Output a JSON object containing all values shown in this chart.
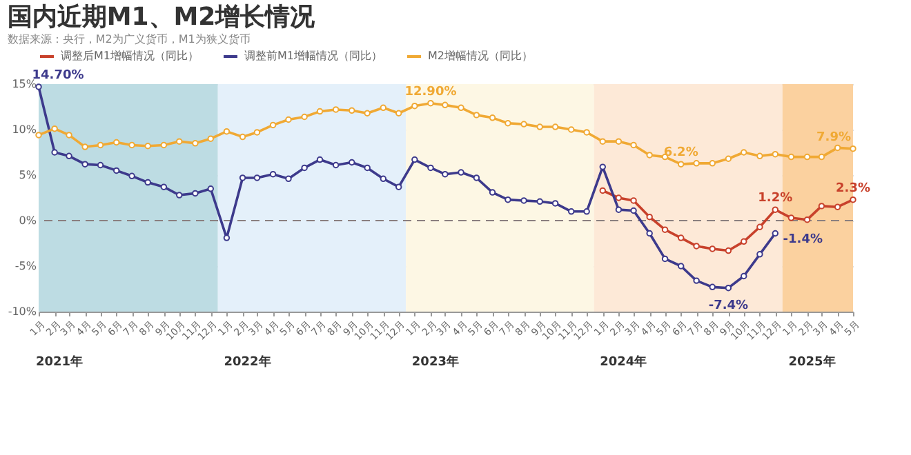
{
  "chart_data": {
    "type": "line",
    "title": "国内近期M1、M2增长情况",
    "subtitle": "数据来源：央行，M2为广义货币，M1为狭义货币",
    "x": [
      "2021-01",
      "2021-02",
      "2021-03",
      "2021-04",
      "2021-05",
      "2021-06",
      "2021-07",
      "2021-08",
      "2021-09",
      "2021-10",
      "2021-11",
      "2021-12",
      "2022-01",
      "2022-02",
      "2022-03",
      "2022-04",
      "2022-05",
      "2022-06",
      "2022-07",
      "2022-08",
      "2022-09",
      "2022-10",
      "2022-11",
      "2022-12",
      "2023-01",
      "2023-02",
      "2023-03",
      "2023-04",
      "2023-05",
      "2023-06",
      "2023-07",
      "2023-08",
      "2023-09",
      "2023-10",
      "2023-11",
      "2023-12",
      "2024-01",
      "2024-02",
      "2024-03",
      "2024-04",
      "2024-05",
      "2024-06",
      "2024-07",
      "2024-08",
      "2024-09",
      "2024-10",
      "2024-11",
      "2024-12",
      "2025-01",
      "2025-02",
      "2025-03",
      "2025-04",
      "2025-05"
    ],
    "series": [
      {
        "name": "调整后M1增幅情况（同比）",
        "color": "#c8412b",
        "values": [
          null,
          null,
          null,
          null,
          null,
          null,
          null,
          null,
          null,
          null,
          null,
          null,
          null,
          null,
          null,
          null,
          null,
          null,
          null,
          null,
          null,
          null,
          null,
          null,
          null,
          null,
          null,
          null,
          null,
          null,
          null,
          null,
          null,
          null,
          null,
          null,
          3.3,
          2.5,
          2.2,
          0.4,
          -1.0,
          -1.9,
          -2.8,
          -3.1,
          -3.3,
          -2.3,
          -0.7,
          1.2,
          0.3,
          0.1,
          1.6,
          1.5,
          2.3
        ],
        "value_labels": [
          null,
          null,
          null,
          null,
          null,
          null,
          null,
          null,
          null,
          null,
          null,
          null,
          null,
          null,
          null,
          null,
          null,
          null,
          null,
          null,
          null,
          null,
          null,
          null,
          null,
          null,
          null,
          null,
          null,
          null,
          null,
          null,
          null,
          null,
          null,
          null,
          null,
          null,
          null,
          null,
          null,
          null,
          null,
          null,
          null,
          null,
          null,
          "1.2%",
          null,
          null,
          null,
          null,
          "2.3%"
        ]
      },
      {
        "name": "调整前M1增幅情况（同比）",
        "color": "#3d3a8c",
        "values": [
          14.7,
          7.5,
          7.1,
          6.2,
          6.1,
          5.5,
          4.9,
          4.2,
          3.7,
          2.8,
          3.0,
          3.5,
          -1.9,
          4.7,
          4.7,
          5.1,
          4.6,
          5.8,
          6.7,
          6.1,
          6.4,
          5.8,
          4.6,
          3.7,
          6.7,
          5.8,
          5.1,
          5.3,
          4.7,
          3.1,
          2.3,
          2.2,
          2.1,
          1.9,
          1.0,
          1.0,
          5.9,
          1.2,
          1.1,
          -1.4,
          -4.2,
          -5.0,
          -6.6,
          -7.3,
          -7.4,
          -6.1,
          -3.7,
          -1.4,
          null,
          null,
          null,
          null,
          null
        ],
        "value_labels": [
          "14.70%",
          null,
          null,
          null,
          null,
          null,
          null,
          null,
          null,
          null,
          null,
          null,
          null,
          null,
          null,
          null,
          null,
          null,
          null,
          null,
          null,
          null,
          null,
          null,
          null,
          null,
          null,
          null,
          null,
          null,
          null,
          null,
          null,
          null,
          null,
          null,
          null,
          null,
          null,
          null,
          null,
          null,
          null,
          null,
          "-7.4%",
          null,
          null,
          "-1.4%",
          null,
          null,
          null,
          null,
          null
        ]
      },
      {
        "name": "M2增幅情况（同比）",
        "color": "#f0a934",
        "values": [
          9.4,
          10.1,
          9.4,
          8.1,
          8.3,
          8.6,
          8.3,
          8.2,
          8.3,
          8.7,
          8.5,
          9.0,
          9.8,
          9.2,
          9.7,
          10.5,
          11.1,
          11.4,
          12.0,
          12.2,
          12.1,
          11.8,
          12.4,
          11.8,
          12.6,
          12.9,
          12.7,
          12.4,
          11.6,
          11.3,
          10.7,
          10.6,
          10.3,
          10.3,
          10.0,
          9.7,
          8.7,
          8.7,
          8.3,
          7.2,
          7.0,
          6.2,
          6.3,
          6.3,
          6.8,
          7.5,
          7.1,
          7.3,
          7.0,
          7.0,
          7.0,
          8.0,
          7.9
        ],
        "value_labels": [
          null,
          null,
          null,
          null,
          null,
          null,
          null,
          null,
          null,
          null,
          null,
          null,
          null,
          null,
          null,
          null,
          null,
          null,
          null,
          null,
          null,
          null,
          null,
          null,
          null,
          "12.90%",
          null,
          null,
          null,
          null,
          null,
          null,
          null,
          null,
          null,
          null,
          null,
          null,
          null,
          null,
          null,
          "6.2%",
          null,
          null,
          null,
          null,
          null,
          null,
          null,
          null,
          null,
          null,
          "7.9%"
        ]
      }
    ],
    "xlim": [
      "2021-01",
      "2025-05"
    ],
    "xticks": [
      {
        "value": "2021-01",
        "label": "1月"
      },
      {
        "value": "2021-02",
        "label": "2月"
      },
      {
        "value": "2021-03",
        "label": "3月"
      },
      {
        "value": "2021-04",
        "label": "4月"
      },
      {
        "value": "2021-05",
        "label": "5月"
      },
      {
        "value": "2021-06",
        "label": "6月"
      },
      {
        "value": "2021-07",
        "label": "7月"
      },
      {
        "value": "2021-08",
        "label": "8月"
      },
      {
        "value": "2021-09",
        "label": "9月"
      },
      {
        "value": "2021-10",
        "label": "10月"
      },
      {
        "value": "2021-11",
        "label": "11月"
      },
      {
        "value": "2021-12",
        "label": "12月"
      },
      {
        "value": "2022-01",
        "label": "1月"
      },
      {
        "value": "2022-02",
        "label": "2月"
      },
      {
        "value": "2022-03",
        "label": "3月"
      },
      {
        "value": "2022-04",
        "label": "4月"
      },
      {
        "value": "2022-05",
        "label": "5月"
      },
      {
        "value": "2022-06",
        "label": "6月"
      },
      {
        "value": "2022-07",
        "label": "7月"
      },
      {
        "value": "2022-08",
        "label": "8月"
      },
      {
        "value": "2022-09",
        "label": "9月"
      },
      {
        "value": "2022-10",
        "label": "10月"
      },
      {
        "value": "2022-11",
        "label": "11月"
      },
      {
        "value": "2022-12",
        "label": "12月"
      },
      {
        "value": "2023-01",
        "label": "1月"
      },
      {
        "value": "2023-02",
        "label": "2月"
      },
      {
        "value": "2023-03",
        "label": "3月"
      },
      {
        "value": "2023-04",
        "label": "4月"
      },
      {
        "value": "2023-05",
        "label": "5月"
      },
      {
        "value": "2023-06",
        "label": "6月"
      },
      {
        "value": "2023-07",
        "label": "7月"
      },
      {
        "value": "2023-08",
        "label": "8月"
      },
      {
        "value": "2023-09",
        "label": "9月"
      },
      {
        "value": "2023-10",
        "label": "10月"
      },
      {
        "value": "2023-11",
        "label": "11月"
      },
      {
        "value": "2023-12",
        "label": "12月"
      },
      {
        "value": "2024-01",
        "label": "1月"
      },
      {
        "value": "2024-02",
        "label": "2月"
      },
      {
        "value": "2024-03",
        "label": "3月"
      },
      {
        "value": "2024-04",
        "label": "4月"
      },
      {
        "value": "2024-05",
        "label": "5月"
      },
      {
        "value": "2024-06",
        "label": "6月"
      },
      {
        "value": "2024-07",
        "label": "7月"
      },
      {
        "value": "2024-08",
        "label": "8月"
      },
      {
        "value": "2024-09",
        "label": "9月"
      },
      {
        "value": "2024-10",
        "label": "10月"
      },
      {
        "value": "2024-11",
        "label": "11月"
      },
      {
        "value": "2024-12",
        "label": "12月"
      },
      {
        "value": "2025-01",
        "label": "1月"
      },
      {
        "value": "2025-02",
        "label": "2月"
      },
      {
        "value": "2025-03",
        "label": "3月"
      },
      {
        "value": "2025-04",
        "label": "4月"
      },
      {
        "value": "2025-05",
        "label": "5月"
      }
    ],
    "ylim": [
      -10,
      15
    ],
    "yticks": [
      {
        "value": -10,
        "label": "-10%"
      },
      {
        "value": -5,
        "label": "-5%"
      },
      {
        "value": 0,
        "label": "0%"
      },
      {
        "value": 5,
        "label": "5%"
      },
      {
        "value": 10,
        "label": "10%"
      },
      {
        "value": 15,
        "label": "15%"
      }
    ],
    "grid": "y",
    "legend": "top left",
    "marker": "circle",
    "line_style": "solid",
    "ref_lines": [
      {
        "axis": "y",
        "value": 0,
        "color": "#8a7f7f",
        "line_style": "dashed"
      }
    ],
    "bands": [
      {
        "axis": "x",
        "from": "2021-01",
        "to": "2021-12-15",
        "color": "#bddce3"
      },
      {
        "axis": "x",
        "from": "2021-12-15",
        "to": "2022-12-15",
        "color": "#e4f0fa"
      },
      {
        "axis": "x",
        "from": "2022-12-15",
        "to": "2023-12-15",
        "color": "#fdf7e4"
      },
      {
        "axis": "x",
        "from": "2023-12-15",
        "to": "2024-12-15",
        "color": "#fde9d7"
      },
      {
        "axis": "x",
        "from": "2024-12-15",
        "to": "2025-05",
        "color": "#fbd19f"
      }
    ],
    "annotations": [
      "2021年",
      "2022年",
      "2023年",
      "2024年",
      "2025年"
    ]
  }
}
